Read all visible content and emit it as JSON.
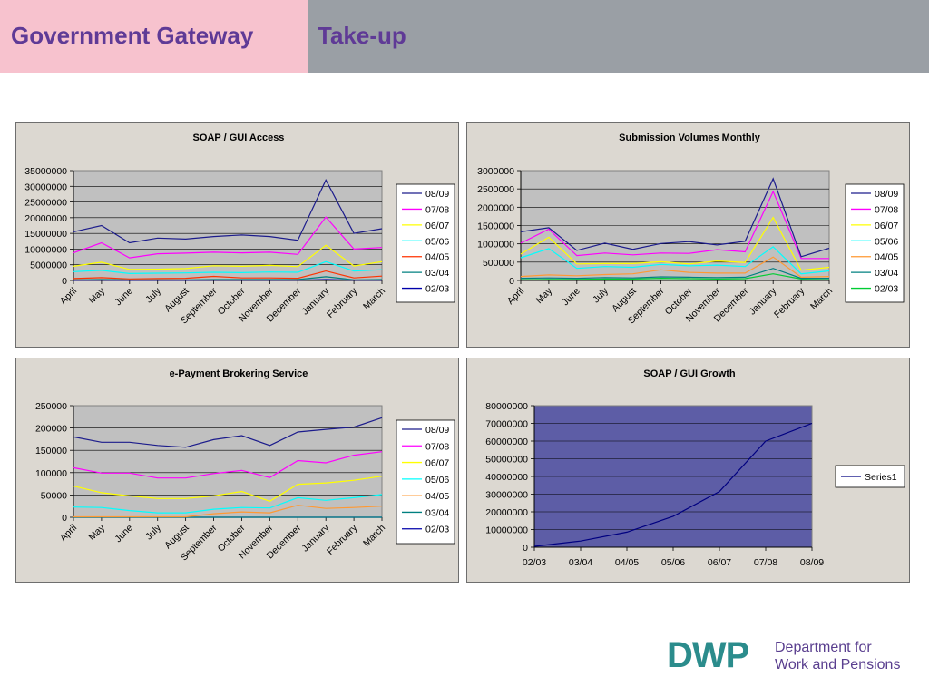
{
  "header": {
    "left_title": "Government Gateway",
    "right_title": "Take-up",
    "left_bg": "#f7c2ce",
    "right_bg": "#9a9fa5",
    "title_color": "#5f3a96"
  },
  "logo": {
    "mark": "DWP",
    "line1": "Department for",
    "line2": "Work and Pensions"
  },
  "chart_data": [
    {
      "type": "line",
      "title": "SOAP / GUI Access",
      "categories": [
        "April",
        "May",
        "June",
        "July",
        "August",
        "September",
        "October",
        "November",
        "December",
        "January",
        "February",
        "March"
      ],
      "ylim": [
        0,
        35000000
      ],
      "yticks": [
        "35000000",
        "30000000",
        "25000000",
        "20000000",
        "15000000",
        "10000000",
        "5000000",
        "0"
      ],
      "grid": true,
      "legend_position": "right",
      "series": [
        {
          "name": "08/09",
          "color": "#1c1c8c",
          "values": [
            15500000,
            17500000,
            12000000,
            13500000,
            13200000,
            14000000,
            14500000,
            14000000,
            12800000,
            32000000,
            15000000,
            16500000
          ]
        },
        {
          "name": "07/08",
          "color": "#ff00ff",
          "values": [
            8800000,
            12000000,
            7200000,
            8500000,
            8700000,
            9000000,
            8800000,
            9000000,
            8300000,
            20200000,
            10000000,
            10500000
          ]
        },
        {
          "name": "06/07",
          "color": "#ffff00",
          "values": [
            4500000,
            5800000,
            3500000,
            3600000,
            3800000,
            4700000,
            4500000,
            4800000,
            4400000,
            11200000,
            4600000,
            6000000
          ]
        },
        {
          "name": "05/06",
          "color": "#00ffff",
          "values": [
            2800000,
            3200000,
            2200000,
            2300000,
            2400000,
            2600000,
            2500000,
            2700000,
            2600000,
            6000000,
            3000000,
            3400000
          ]
        },
        {
          "name": "04/05",
          "color": "#ff3300",
          "values": [
            600000,
            900000,
            500000,
            600000,
            700000,
            1300000,
            800000,
            800000,
            700000,
            3000000,
            800000,
            1400000
          ]
        },
        {
          "name": "03/04",
          "color": "#008080",
          "values": [
            200000,
            300000,
            200000,
            200000,
            200000,
            300000,
            300000,
            300000,
            300000,
            1200000,
            200000,
            300000
          ]
        },
        {
          "name": "02/03",
          "color": "#0000aa",
          "values": [
            50000,
            80000,
            60000,
            60000,
            60000,
            80000,
            80000,
            80000,
            80000,
            300000,
            80000,
            100000
          ]
        }
      ]
    },
    {
      "type": "line",
      "title": "Submission Volumes Monthly",
      "categories": [
        "April",
        "May",
        "June",
        "July",
        "August",
        "September",
        "October",
        "November",
        "December",
        "January",
        "February",
        "March"
      ],
      "ylim": [
        0,
        3000000
      ],
      "yticks": [
        "3000000",
        "2500000",
        "2000000",
        "1500000",
        "1000000",
        "500000",
        "0"
      ],
      "grid": true,
      "legend_position": "right",
      "series": [
        {
          "name": "08/09",
          "color": "#1c1c8c",
          "values": [
            1330000,
            1440000,
            820000,
            1020000,
            850000,
            1010000,
            1060000,
            970000,
            1070000,
            2780000,
            650000,
            880000
          ]
        },
        {
          "name": "07/08",
          "color": "#ff00ff",
          "values": [
            1020000,
            1400000,
            680000,
            750000,
            700000,
            750000,
            740000,
            840000,
            780000,
            2430000,
            600000,
            600000
          ]
        },
        {
          "name": "06/07",
          "color": "#ffff00",
          "values": [
            720000,
            1180000,
            450000,
            460000,
            460000,
            510000,
            450000,
            530000,
            490000,
            1720000,
            280000,
            360000
          ]
        },
        {
          "name": "05/06",
          "color": "#00ffff",
          "values": [
            620000,
            870000,
            330000,
            380000,
            360000,
            440000,
            400000,
            420000,
            380000,
            920000,
            180000,
            260000
          ]
        },
        {
          "name": "04/05",
          "color": "#ff9933",
          "values": [
            110000,
            150000,
            130000,
            160000,
            180000,
            290000,
            220000,
            200000,
            200000,
            640000,
            90000,
            110000
          ]
        },
        {
          "name": "03/04",
          "color": "#008080",
          "values": [
            60000,
            70000,
            60000,
            80000,
            70000,
            100000,
            90000,
            80000,
            90000,
            330000,
            60000,
            60000
          ]
        },
        {
          "name": "02/03",
          "color": "#00cc33",
          "values": [
            20000,
            30000,
            30000,
            40000,
            40000,
            60000,
            50000,
            40000,
            50000,
            180000,
            40000,
            50000
          ]
        }
      ]
    },
    {
      "type": "line",
      "title": "e-Payment Brokering Service",
      "categories": [
        "April",
        "May",
        "June",
        "July",
        "August",
        "September",
        "October",
        "November",
        "December",
        "January",
        "February",
        "March"
      ],
      "ylim": [
        0,
        250000
      ],
      "yticks": [
        "250000",
        "200000",
        "150000",
        "100000",
        "50000",
        "0"
      ],
      "grid": true,
      "legend_position": "right",
      "series": [
        {
          "name": "08/09",
          "color": "#1c1c8c",
          "values": [
            180000,
            168000,
            168000,
            161000,
            157000,
            174000,
            183000,
            161000,
            191000,
            197000,
            202000,
            223000
          ]
        },
        {
          "name": "07/08",
          "color": "#ff00ff",
          "values": [
            111000,
            99000,
            99000,
            88000,
            88000,
            98000,
            105000,
            89000,
            127000,
            122000,
            139000,
            147000
          ]
        },
        {
          "name": "06/07",
          "color": "#ffff00",
          "values": [
            70000,
            55000,
            48000,
            42000,
            42000,
            48000,
            58000,
            36000,
            74000,
            77000,
            83000,
            92000
          ]
        },
        {
          "name": "05/06",
          "color": "#00ffff",
          "values": [
            23000,
            22000,
            15000,
            10000,
            10000,
            18000,
            22000,
            21000,
            44000,
            38000,
            44000,
            51000
          ]
        },
        {
          "name": "04/05",
          "color": "#ff9933",
          "values": [
            1000,
            1000,
            1000,
            1000,
            1000,
            8000,
            12000,
            10000,
            27000,
            20000,
            22000,
            25000
          ]
        },
        {
          "name": "03/04",
          "color": "#008080",
          "values": [
            0,
            0,
            0,
            0,
            0,
            0,
            0,
            0,
            0,
            0,
            0,
            0
          ]
        },
        {
          "name": "02/03",
          "color": "#0000aa",
          "values": [
            0,
            0,
            0,
            0,
            0,
            0,
            0,
            0,
            0,
            0,
            0,
            0
          ]
        }
      ]
    },
    {
      "type": "line",
      "title": "SOAP / GUI Growth",
      "categories": [
        "02/03",
        "03/04",
        "04/05",
        "05/06",
        "06/07",
        "07/08",
        "08/09"
      ],
      "ylim": [
        0,
        80000000
      ],
      "yticks": [
        "80000000",
        "70000000",
        "60000000",
        "50000000",
        "40000000",
        "30000000",
        "20000000",
        "10000000",
        "0"
      ],
      "grid": true,
      "plot_background": "#5d5da6",
      "legend_position": "right",
      "series": [
        {
          "name": "Series1",
          "color": "#000080",
          "values": [
            500000,
            3500000,
            8500000,
            17500000,
            31500000,
            60000000,
            70000000
          ]
        }
      ]
    }
  ]
}
